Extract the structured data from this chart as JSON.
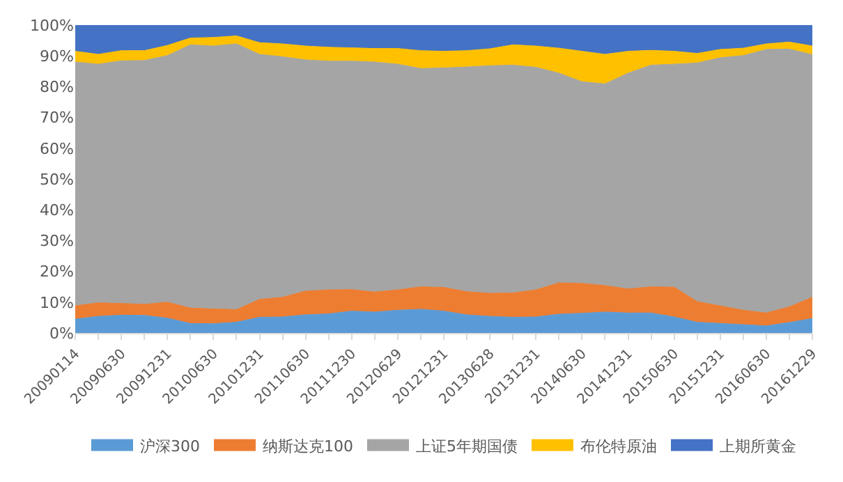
{
  "chart_data": {
    "type": "area",
    "stacked": true,
    "legend": "bottom",
    "categories": [
      "20090114",
      null,
      "20090630",
      null,
      "20091231",
      null,
      "20100630",
      null,
      "20101231",
      null,
      "20110630",
      null,
      "20111230",
      null,
      "20120629",
      null,
      "20121231",
      null,
      "20130628",
      null,
      "20131231",
      null,
      "20140630",
      null,
      "20141231",
      null,
      "20150630",
      null,
      "20151231",
      null,
      "20160630",
      null,
      "20161229"
    ],
    "ylim": [
      0,
      100
    ],
    "yticks": [
      {
        "value": 0,
        "label": "0%"
      },
      {
        "value": 10,
        "label": "10%"
      },
      {
        "value": 20,
        "label": "20%"
      },
      {
        "value": 30,
        "label": "30%"
      },
      {
        "value": 40,
        "label": "40%"
      },
      {
        "value": 50,
        "label": "50%"
      },
      {
        "value": 60,
        "label": "60%"
      },
      {
        "value": 70,
        "label": "70%"
      },
      {
        "value": 80,
        "label": "80%"
      },
      {
        "value": 90,
        "label": "90%"
      },
      {
        "value": 100,
        "label": "100%"
      }
    ],
    "series": [
      {
        "name": "沪深300",
        "color": "#5b9bd5",
        "values": [
          4.5,
          5.4,
          5.8,
          5.7,
          4.8,
          3.1,
          3.0,
          3.5,
          5.1,
          5.2,
          5.9,
          6.2,
          7.1,
          6.8,
          7.4,
          7.7,
          7.1,
          5.9,
          5.4,
          5.1,
          5.2,
          6.1,
          6.4,
          6.8,
          6.5,
          6.5,
          5.2,
          3.5,
          3.1,
          2.7,
          2.3,
          3.4,
          4.7
        ]
      },
      {
        "name": "纳斯达克100",
        "color": "#ed7d31",
        "values": [
          4.3,
          4.4,
          3.8,
          3.6,
          5.2,
          5.0,
          4.8,
          4.1,
          5.8,
          6.4,
          7.7,
          7.8,
          7.0,
          6.5,
          6.6,
          7.3,
          7.7,
          7.5,
          7.5,
          7.9,
          8.8,
          10.2,
          9.7,
          8.6,
          7.8,
          8.5,
          9.7,
          6.7,
          5.7,
          4.7,
          4.2,
          5.1,
          6.9
        ]
      },
      {
        "name": "上证5年期国债",
        "color": "#a5a5a5",
        "values": [
          79.2,
          77.5,
          78.8,
          79.2,
          80.1,
          85.5,
          85.4,
          86.3,
          79.6,
          78.1,
          75.1,
          74.3,
          74.2,
          74.7,
          73.3,
          70.9,
          71.3,
          73.0,
          73.9,
          74.0,
          72.3,
          68.1,
          65.5,
          65.5,
          70.1,
          72.0,
          72.4,
          77.5,
          80.6,
          82.7,
          85.6,
          83.7,
          78.8
        ]
      },
      {
        "name": "布伦特原油",
        "color": "#ffc000",
        "values": [
          3.5,
          3.2,
          3.3,
          3.2,
          3.3,
          2.2,
          2.8,
          2.6,
          3.8,
          4.2,
          4.5,
          4.5,
          4.3,
          4.4,
          5.1,
          5.8,
          5.4,
          5.3,
          5.5,
          6.6,
          6.9,
          8.1,
          9.9,
          9.6,
          7.1,
          4.8,
          4.2,
          3.1,
          2.7,
          2.4,
          1.8,
          2.3,
          2.8
        ]
      },
      {
        "name": "上期所黄金",
        "color": "#4472c4",
        "values": [
          8.5,
          9.5,
          8.3,
          8.3,
          6.6,
          4.2,
          4.0,
          3.5,
          5.7,
          6.1,
          6.8,
          7.2,
          7.4,
          7.6,
          7.6,
          8.3,
          8.5,
          8.3,
          7.7,
          6.4,
          6.8,
          7.5,
          8.5,
          9.5,
          8.5,
          8.2,
          8.5,
          9.2,
          7.9,
          7.5,
          6.1,
          5.5,
          6.8
        ]
      }
    ]
  }
}
